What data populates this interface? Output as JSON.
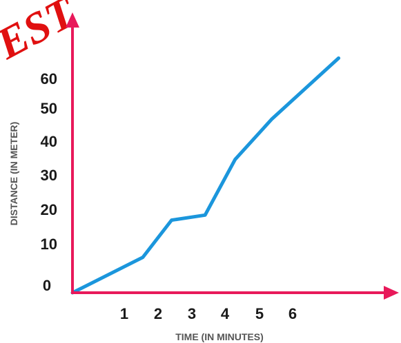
{
  "watermark": {
    "text": "EST",
    "color": "#e01010"
  },
  "chart_data": {
    "type": "line",
    "xlabel": "TIME (IN MINUTES)",
    "ylabel": "DISTANCE (IN METER)",
    "x_ticks": [
      1,
      2,
      3,
      4,
      5,
      6
    ],
    "y_ticks": [
      10,
      20,
      30,
      40,
      50,
      60
    ],
    "origin_label": "0",
    "xlim": [
      0,
      9
    ],
    "ylim": [
      -2,
      67
    ],
    "grid": false,
    "legend": "none",
    "axis_color": "#e8195a",
    "series": [
      {
        "color": "#1b96dc",
        "x": [
          0,
          2.08,
          2.93,
          3.92,
          4.81,
          5.9,
          7.87
        ],
        "y": [
          0,
          10.5,
          21.5,
          23.0,
          39.5,
          51.5,
          69.5
        ]
      }
    ]
  }
}
